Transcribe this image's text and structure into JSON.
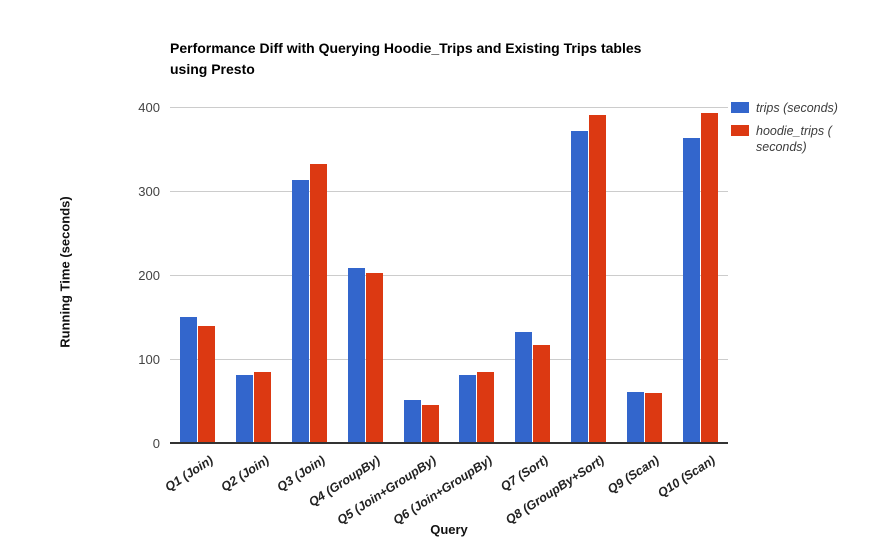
{
  "chart_data": {
    "type": "bar",
    "title": "Performance Diff with Querying Hoodie_Trips and Existing Trips tables using Presto",
    "title_lines": [
      "Performance Diff with Querying Hoodie_Trips and Existing Trips tables",
      "using Presto"
    ],
    "xlabel": "Query",
    "ylabel": "Running Time (seconds)",
    "ylim": [
      0,
      400
    ],
    "yticks": [
      0,
      100,
      200,
      300,
      400
    ],
    "grid": true,
    "legend_position": "right",
    "categories": [
      "Q1 (Join)",
      "Q2 (Join)",
      "Q3 (Join)",
      "Q4 (GroupBy)",
      "Q5 (Join+GroupBy)",
      "Q6 (Join+GroupBy)",
      "Q7 (Sort)",
      "Q8 (GroupBy+Sort)",
      "Q9 (Scan)",
      "Q10 (Scan)"
    ],
    "series": [
      {
        "name": "trips (seconds)",
        "color": "#3366cc",
        "values": [
          150,
          81,
          313,
          208,
          51,
          81,
          132,
          371,
          61,
          363
        ]
      },
      {
        "name": "hoodie_trips (seconds)",
        "color": "#dc3912",
        "values": [
          139,
          84,
          332,
          202,
          45,
          85,
          117,
          390,
          60,
          393
        ]
      }
    ],
    "legend_lines": [
      [
        "trips (seconds)"
      ],
      [
        "hoodie_trips (",
        "seconds)"
      ]
    ]
  },
  "colors": {
    "gridline": "#cccccc",
    "axis_line": "#333333",
    "background": "#ffffff"
  }
}
